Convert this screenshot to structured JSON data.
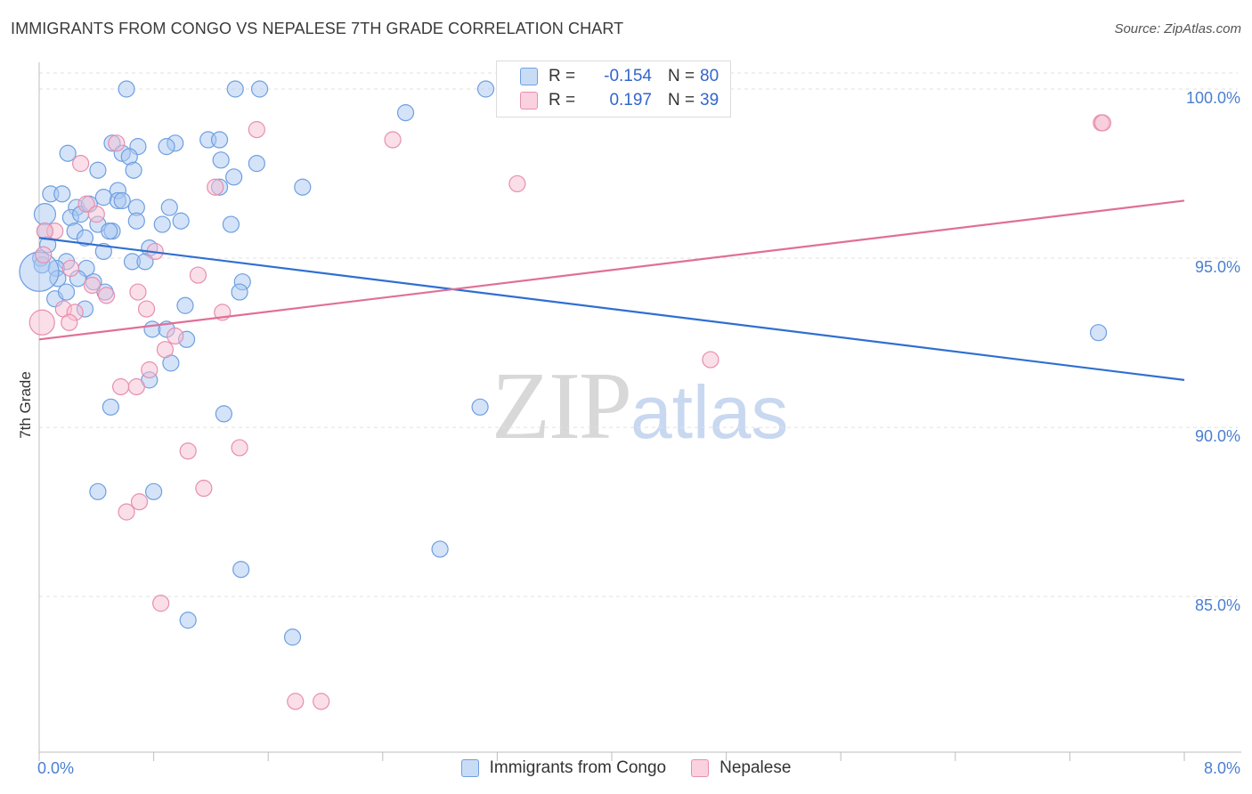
{
  "title": "IMMIGRANTS FROM CONGO VS NEPALESE 7TH GRADE CORRELATION CHART",
  "source": "Source: ZipAtlas.com",
  "watermark": {
    "zip": "ZIP",
    "atlas": "atlas"
  },
  "colors": {
    "congo_fill": "#a9c8f2",
    "congo_stroke": "#6e9fe0",
    "congo_line": "#2f6fd1",
    "nepal_fill": "#f6c0d2",
    "nepal_stroke": "#e88eae",
    "nepal_line": "#e06f98",
    "tick": "#4a7fd0",
    "grid": "#e2e2e2"
  },
  "legend": {
    "rows": [
      {
        "r_label": "R =",
        "r_value": "-0.154",
        "n_label": "N =",
        "n_value": "80"
      },
      {
        "r_label": "R =",
        "r_value": "0.197",
        "n_label": "N =",
        "n_value": "39"
      }
    ]
  },
  "chart_data": {
    "type": "scatter",
    "title": "IMMIGRANTS FROM CONGO VS NEPALESE 7TH GRADE CORRELATION CHART",
    "xlabel": "",
    "ylabel": "7th Grade",
    "xlim": [
      0,
      8.0
    ],
    "ylim": [
      80.4,
      101.0
    ],
    "x_tick_labels": [
      "0.0%",
      "8.0%"
    ],
    "y_ticks": [
      85,
      90,
      95,
      100
    ],
    "y_tick_labels": [
      "85.0%",
      "90.0%",
      "95.0%",
      "100.0%"
    ],
    "grid": true,
    "series": [
      {
        "name": "Immigrants from Congo",
        "trend": {
          "x0": 0.0,
          "y0": 95.6,
          "x1": 8.0,
          "y1": 91.4
        },
        "points": [
          [
            0.61,
            100.0
          ],
          [
            1.37,
            100.0
          ],
          [
            1.54,
            100.0
          ],
          [
            3.12,
            100.0
          ],
          [
            2.56,
            99.3
          ],
          [
            0.51,
            98.4
          ],
          [
            0.69,
            98.3
          ],
          [
            0.95,
            98.4
          ],
          [
            1.18,
            98.5
          ],
          [
            0.89,
            98.3
          ],
          [
            1.26,
            98.5
          ],
          [
            0.2,
            98.1
          ],
          [
            0.58,
            98.1
          ],
          [
            0.63,
            98.0
          ],
          [
            1.27,
            97.9
          ],
          [
            1.52,
            97.8
          ],
          [
            0.41,
            97.6
          ],
          [
            0.66,
            97.6
          ],
          [
            1.36,
            97.4
          ],
          [
            1.26,
            97.1
          ],
          [
            0.55,
            97.0
          ],
          [
            1.84,
            97.1
          ],
          [
            0.08,
            96.9
          ],
          [
            0.16,
            96.9
          ],
          [
            0.45,
            96.8
          ],
          [
            0.55,
            96.7
          ],
          [
            0.58,
            96.7
          ],
          [
            0.26,
            96.5
          ],
          [
            0.68,
            96.5
          ],
          [
            0.91,
            96.5
          ],
          [
            0.04,
            96.3
          ],
          [
            0.22,
            96.2
          ],
          [
            0.29,
            96.3
          ],
          [
            0.41,
            96.0
          ],
          [
            0.68,
            96.1
          ],
          [
            0.86,
            96.0
          ],
          [
            0.99,
            96.1
          ],
          [
            1.34,
            96.0
          ],
          [
            0.51,
            95.8
          ],
          [
            0.49,
            95.8
          ],
          [
            0.04,
            95.8
          ],
          [
            0.25,
            95.8
          ],
          [
            0.32,
            95.6
          ],
          [
            0.77,
            95.3
          ],
          [
            0.45,
            95.2
          ],
          [
            0.01,
            95.0
          ],
          [
            0.02,
            94.8
          ],
          [
            0.19,
            94.9
          ],
          [
            0.65,
            94.9
          ],
          [
            0.74,
            94.9
          ],
          [
            0.12,
            94.7
          ],
          [
            0.33,
            94.7
          ],
          [
            0.13,
            94.4
          ],
          [
            0.27,
            94.4
          ],
          [
            1.42,
            94.3
          ],
          [
            0.38,
            94.3
          ],
          [
            0.46,
            94.0
          ],
          [
            1.4,
            94.0
          ],
          [
            0.11,
            93.8
          ],
          [
            1.02,
            93.6
          ],
          [
            0.32,
            93.5
          ],
          [
            0.79,
            92.9
          ],
          [
            0.89,
            92.9
          ],
          [
            1.03,
            92.6
          ],
          [
            7.4,
            92.8
          ],
          [
            0.92,
            91.9
          ],
          [
            0.77,
            91.4
          ],
          [
            0.5,
            90.6
          ],
          [
            3.08,
            90.6
          ],
          [
            1.29,
            90.4
          ],
          [
            0.41,
            88.1
          ],
          [
            0.8,
            88.1
          ],
          [
            2.8,
            86.4
          ],
          [
            1.41,
            85.8
          ],
          [
            1.04,
            84.3
          ],
          [
            1.77,
            83.8
          ],
          [
            0.0,
            94.6
          ],
          [
            0.06,
            95.4
          ],
          [
            0.35,
            96.6
          ],
          [
            0.19,
            94.0
          ]
        ],
        "radius_note": "sized bubbles"
      },
      {
        "name": "Nepalese",
        "trend": {
          "x0": 0.0,
          "y0": 92.6,
          "x1": 8.0,
          "y1": 96.7
        },
        "points": [
          [
            0.54,
            98.4
          ],
          [
            1.52,
            98.8
          ],
          [
            2.47,
            98.5
          ],
          [
            7.42,
            99.0
          ],
          [
            7.43,
            99.0
          ],
          [
            0.29,
            97.8
          ],
          [
            3.34,
            97.2
          ],
          [
            1.23,
            97.1
          ],
          [
            0.33,
            96.6
          ],
          [
            0.4,
            96.3
          ],
          [
            0.11,
            95.8
          ],
          [
            0.04,
            95.8
          ],
          [
            0.81,
            95.2
          ],
          [
            1.11,
            94.5
          ],
          [
            0.37,
            94.2
          ],
          [
            0.47,
            93.9
          ],
          [
            0.17,
            93.5
          ],
          [
            0.25,
            93.4
          ],
          [
            0.75,
            93.5
          ],
          [
            1.28,
            93.4
          ],
          [
            0.02,
            93.1
          ],
          [
            0.21,
            93.1
          ],
          [
            0.95,
            92.7
          ],
          [
            0.88,
            92.3
          ],
          [
            4.69,
            92.0
          ],
          [
            0.77,
            91.7
          ],
          [
            0.57,
            91.2
          ],
          [
            0.68,
            91.2
          ],
          [
            1.04,
            89.3
          ],
          [
            1.4,
            89.4
          ],
          [
            1.15,
            88.2
          ],
          [
            0.7,
            87.8
          ],
          [
            0.61,
            87.5
          ],
          [
            0.85,
            84.8
          ],
          [
            1.79,
            81.9
          ],
          [
            1.97,
            81.9
          ],
          [
            0.22,
            94.7
          ],
          [
            0.03,
            95.1
          ],
          [
            0.69,
            94.0
          ]
        ]
      }
    ]
  },
  "bottom_legend": [
    {
      "label": "Immigrants from Congo"
    },
    {
      "label": "Nepalese"
    }
  ]
}
